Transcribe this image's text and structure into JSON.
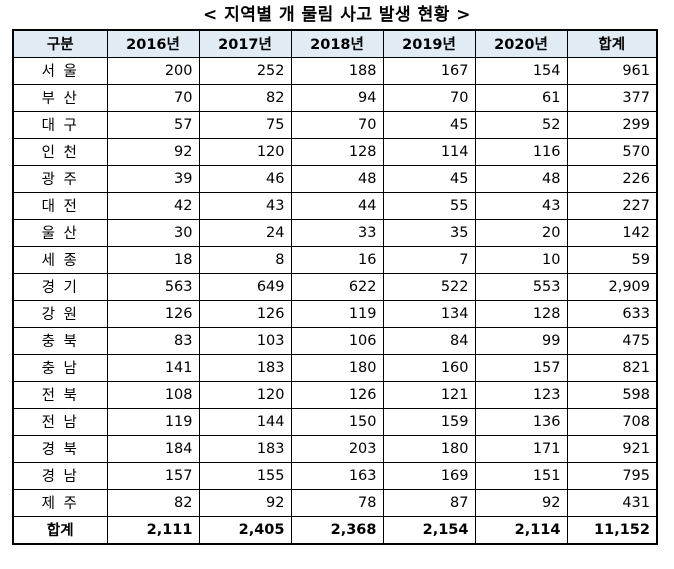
{
  "title": "< 지역별 개 물림 사고 발생 현황 >",
  "headers": [
    "구분",
    "2016년",
    "2017년",
    "2018년",
    "2019년",
    "2020년",
    "합계"
  ],
  "rows": [
    {
      "region": "서 울",
      "values": [
        "200",
        "252",
        "188",
        "167",
        "154",
        "961"
      ]
    },
    {
      "region": "부 산",
      "values": [
        "70",
        "82",
        "94",
        "70",
        "61",
        "377"
      ]
    },
    {
      "region": "대 구",
      "values": [
        "57",
        "75",
        "70",
        "45",
        "52",
        "299"
      ]
    },
    {
      "region": "인 천",
      "values": [
        "92",
        "120",
        "128",
        "114",
        "116",
        "570"
      ]
    },
    {
      "region": "광 주",
      "values": [
        "39",
        "46",
        "48",
        "45",
        "48",
        "226"
      ]
    },
    {
      "region": "대 전",
      "values": [
        "42",
        "43",
        "44",
        "55",
        "43",
        "227"
      ]
    },
    {
      "region": "울 산",
      "values": [
        "30",
        "24",
        "33",
        "35",
        "20",
        "142"
      ]
    },
    {
      "region": "세 종",
      "values": [
        "18",
        "8",
        "16",
        "7",
        "10",
        "59"
      ]
    },
    {
      "region": "경 기",
      "values": [
        "563",
        "649",
        "622",
        "522",
        "553",
        "2,909"
      ]
    },
    {
      "region": "강 원",
      "values": [
        "126",
        "126",
        "119",
        "134",
        "128",
        "633"
      ]
    },
    {
      "region": "충 북",
      "values": [
        "83",
        "103",
        "106",
        "84",
        "99",
        "475"
      ]
    },
    {
      "region": "충 남",
      "values": [
        "141",
        "183",
        "180",
        "160",
        "157",
        "821"
      ]
    },
    {
      "region": "전 북",
      "values": [
        "108",
        "120",
        "126",
        "121",
        "123",
        "598"
      ]
    },
    {
      "region": "전 남",
      "values": [
        "119",
        "144",
        "150",
        "159",
        "136",
        "708"
      ]
    },
    {
      "region": "경 북",
      "values": [
        "184",
        "183",
        "203",
        "180",
        "171",
        "921"
      ]
    },
    {
      "region": "경 남",
      "values": [
        "157",
        "155",
        "163",
        "169",
        "151",
        "795"
      ]
    },
    {
      "region": "제 주",
      "values": [
        "82",
        "92",
        "78",
        "87",
        "92",
        "431"
      ]
    }
  ],
  "total": {
    "label": "합계",
    "values": [
      "2,111",
      "2,405",
      "2,368",
      "2,154",
      "2,114",
      "11,152"
    ]
  }
}
